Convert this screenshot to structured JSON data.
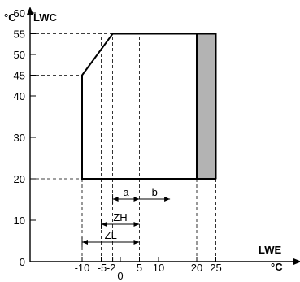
{
  "y_axis": {
    "unit": "°C",
    "name": "LWC",
    "ticks": [
      {
        "value": 0,
        "label": "0"
      },
      {
        "value": 10,
        "label": "10"
      },
      {
        "value": 20,
        "label": "20"
      },
      {
        "value": 30,
        "label": "30"
      },
      {
        "value": 40,
        "label": "40"
      },
      {
        "value": 45,
        "label": "45"
      },
      {
        "value": 50,
        "label": "50"
      },
      {
        "value": 55,
        "label": "55"
      },
      {
        "value": 60,
        "label": "60"
      }
    ]
  },
  "x_axis": {
    "unit": "°C",
    "name": "LWE",
    "ticks": [
      {
        "value": -10,
        "label": "-10"
      },
      {
        "value": -5,
        "label": "-5"
      },
      {
        "value": -2,
        "label": "-2"
      },
      {
        "value": 0,
        "label": "0"
      },
      {
        "value": 5,
        "label": "5"
      },
      {
        "value": 10,
        "label": "10"
      },
      {
        "value": 20,
        "label": "20"
      },
      {
        "value": 25,
        "label": "25"
      }
    ]
  },
  "envelope": {
    "outline": [
      [
        -10,
        20
      ],
      [
        -10,
        45
      ],
      [
        -2,
        55
      ],
      [
        20,
        55
      ],
      [
        20,
        20
      ]
    ],
    "shaded_band": {
      "x_from": 20,
      "x_to": 25,
      "y_from": 20,
      "y_to": 55,
      "color": "#b3b3b3"
    }
  },
  "dimensions": {
    "a": {
      "label": "a",
      "from": -2,
      "to": 5
    },
    "b": {
      "label": "b",
      "from": 5,
      "to": 13
    },
    "zh": {
      "label": "ZH",
      "from": -5,
      "to": 5
    },
    "zl": {
      "label": "ZL",
      "from": -10,
      "to": 5
    }
  }
}
